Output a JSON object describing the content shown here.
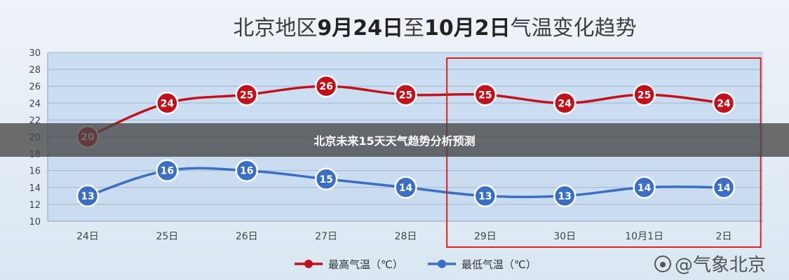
{
  "chart_data": {
    "type": "line",
    "title_parts": [
      "北京地区",
      "9月24日",
      "至",
      "10月2日",
      "气温变化趋势"
    ],
    "categories": [
      "24日",
      "25日",
      "26日",
      "27日",
      "28日",
      "29日",
      "30日",
      "10月1日",
      "2日"
    ],
    "series": [
      {
        "name": "最高气温（℃）",
        "color": "#c1121c",
        "values": [
          20,
          24,
          25,
          26,
          25,
          25,
          24,
          25,
          24
        ]
      },
      {
        "name": "最低气温（℃）",
        "color": "#3a6fc4",
        "values": [
          13,
          16,
          16,
          15,
          14,
          13,
          13,
          14,
          14
        ]
      }
    ],
    "ylim": [
      10,
      30
    ],
    "yticks": [
      10,
      12,
      14,
      16,
      18,
      20,
      22,
      24,
      26,
      28,
      30
    ],
    "grid": true,
    "legend_position": "bottom",
    "highlight": {
      "from_category": "29日",
      "to_category": "2日",
      "color": "#e02020"
    }
  },
  "overlay": {
    "caption": "北京未来15天天气趋势分析预测"
  },
  "watermark": {
    "text": "@气象北京"
  }
}
